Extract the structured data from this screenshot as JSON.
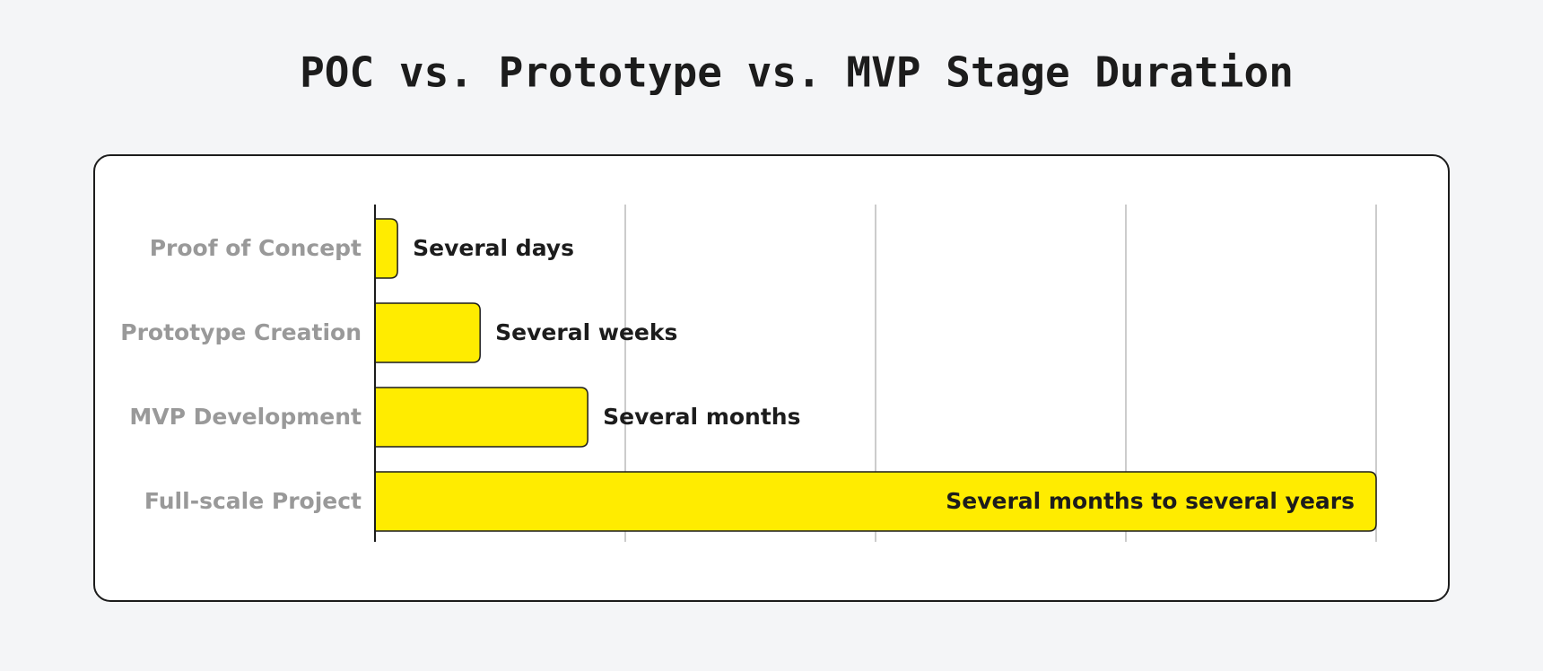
{
  "chart_data": {
    "type": "bar",
    "orientation": "horizontal",
    "title": "POC vs. Prototype vs. MVP Stage Duration",
    "categories": [
      "Proof of Concept",
      "Prototype Creation",
      "MVP Development",
      "Full-scale Project"
    ],
    "values": [
      0.09,
      0.42,
      0.85,
      4
    ],
    "value_labels": [
      "Several days",
      "Several weeks",
      "Several months",
      "Several months to several years"
    ],
    "color": "#ffec00",
    "xlim": [
      0,
      4
    ],
    "xticks": [
      1,
      2,
      3,
      4
    ],
    "grid": true
  }
}
